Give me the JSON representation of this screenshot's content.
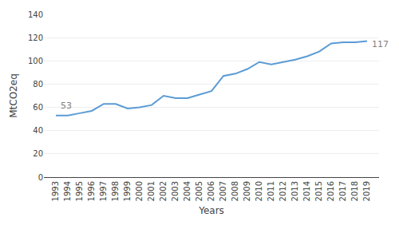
{
  "chart_data": {
    "type": "line",
    "x": [
      1993,
      1994,
      1995,
      1996,
      1997,
      1998,
      1999,
      2000,
      2001,
      2002,
      2003,
      2004,
      2005,
      2006,
      2007,
      2008,
      2009,
      2010,
      2011,
      2012,
      2013,
      2014,
      2015,
      2016,
      2017,
      2018,
      2019
    ],
    "values": [
      53,
      53,
      55,
      57,
      63,
      63,
      59,
      60,
      62,
      70,
      68,
      68,
      71,
      74,
      87,
      89,
      93,
      99,
      97,
      99,
      101,
      104,
      108,
      115,
      116,
      116,
      117
    ],
    "color": "#5b9bd5",
    "xlabel": "Years",
    "ylabel": "MtCO2eq",
    "xlim": [
      1992,
      2020
    ],
    "xticks": [
      1993,
      1994,
      1995,
      1996,
      1997,
      1998,
      1999,
      2000,
      2001,
      2002,
      2003,
      2004,
      2005,
      2006,
      2007,
      2008,
      2009,
      2010,
      2011,
      2012,
      2013,
      2014,
      2015,
      2016,
      2017,
      2018,
      2019
    ],
    "ylim": [
      0,
      140
    ],
    "yticks": [
      0,
      20,
      40,
      60,
      80,
      100,
      120,
      140
    ],
    "grid": "y",
    "annotations": [
      {
        "text": "53",
        "x": 1993,
        "y": 53
      },
      {
        "text": "117",
        "x": 2019,
        "y": 117
      }
    ]
  }
}
